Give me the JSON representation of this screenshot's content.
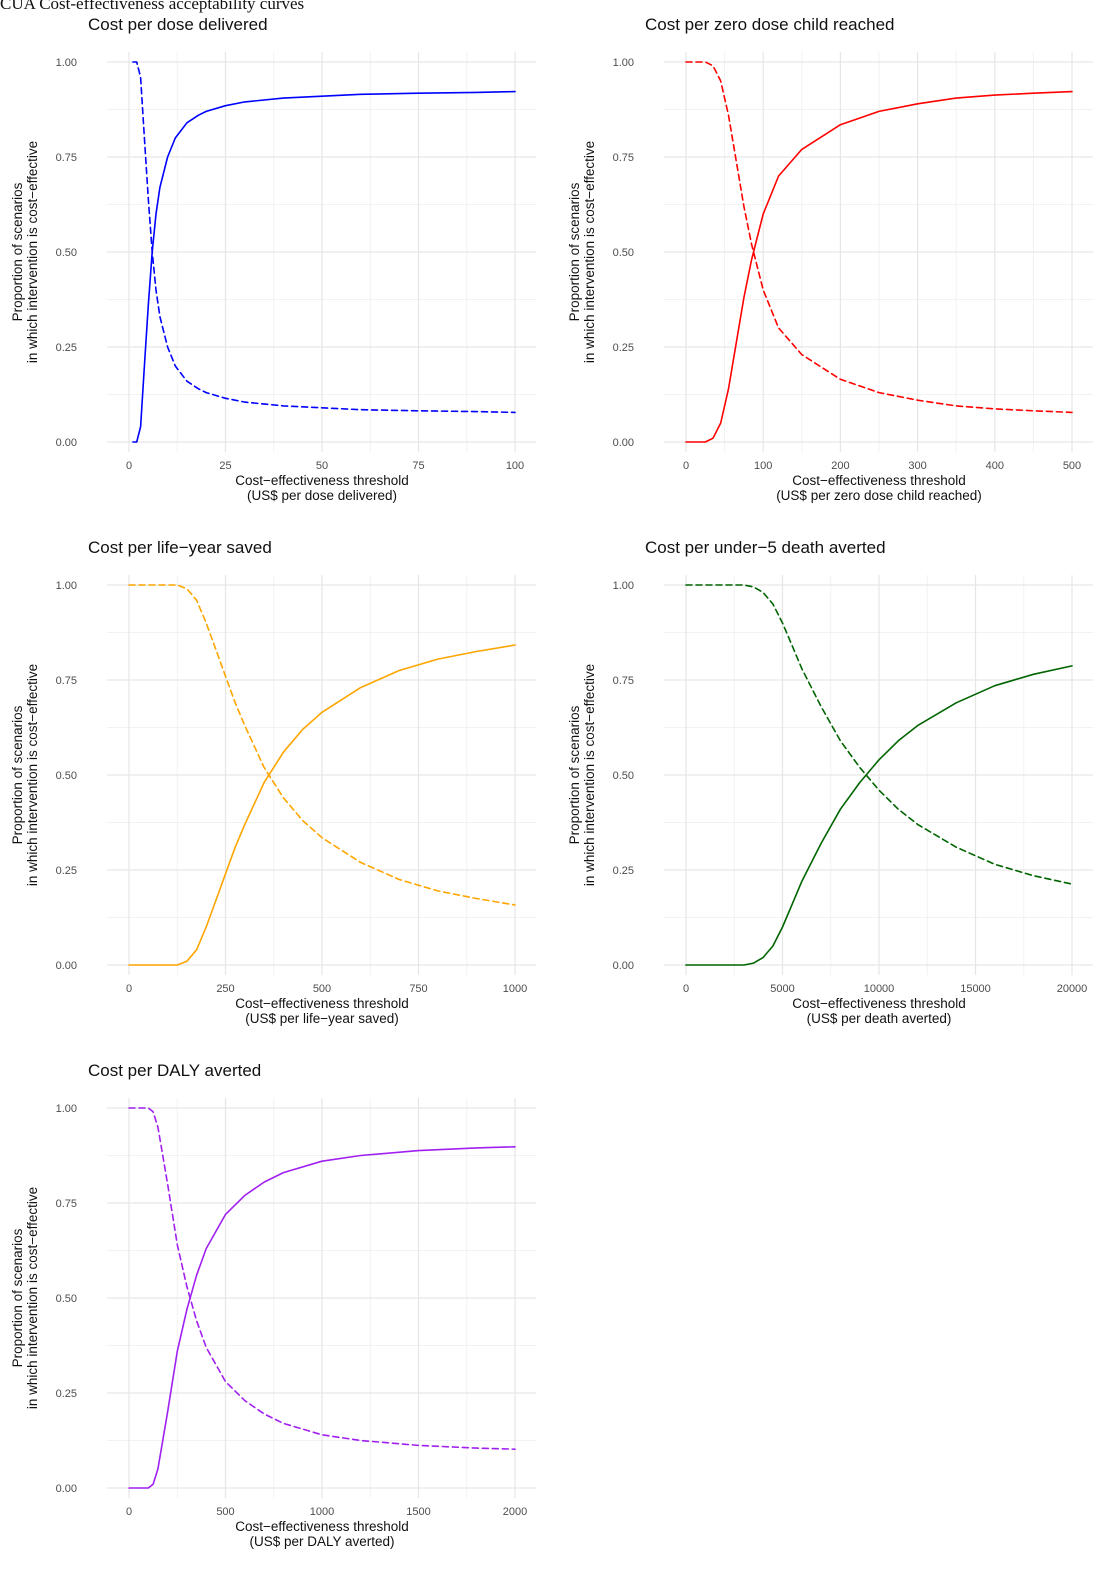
{
  "figure": {
    "heading": "CUA Cost-effectiveness acceptability curves"
  },
  "chart_data": [
    {
      "type": "line",
      "title": "Cost per dose delivered",
      "xlabel": [
        "Cost−effectiveness threshold",
        "(US$ per dose delivered)"
      ],
      "ylabel": [
        "Proportion of scenarios",
        "in which intervention is cost−effective"
      ],
      "xlim": [
        0,
        100
      ],
      "ylim": [
        0,
        1
      ],
      "x_ticks": [
        0,
        25,
        50,
        75,
        100
      ],
      "x_tick_labels": [
        "0",
        "25",
        "50",
        "75",
        "100"
      ],
      "y_ticks": [
        0,
        0.25,
        0.5,
        0.75,
        1
      ],
      "y_tick_labels": [
        "0.00",
        "0.25",
        "0.50",
        "0.75",
        "1.00"
      ],
      "grid": true,
      "legend": "none",
      "color": "#0000ff",
      "series": [
        {
          "style": "solid",
          "x": [
            1,
            2,
            3,
            4,
            5,
            6,
            7,
            8,
            10,
            12,
            15,
            18,
            20,
            25,
            30,
            40,
            50,
            60,
            75,
            90,
            100
          ],
          "y": [
            0,
            0,
            0.04,
            0.2,
            0.36,
            0.5,
            0.6,
            0.67,
            0.75,
            0.8,
            0.84,
            0.86,
            0.87,
            0.885,
            0.895,
            0.905,
            0.91,
            0.915,
            0.918,
            0.92,
            0.922
          ]
        },
        {
          "style": "dashed",
          "x": [
            1,
            2,
            3,
            4,
            5,
            6,
            7,
            8,
            10,
            12,
            15,
            18,
            20,
            25,
            30,
            40,
            50,
            60,
            75,
            90,
            100
          ],
          "y": [
            1,
            1,
            0.96,
            0.8,
            0.64,
            0.5,
            0.4,
            0.33,
            0.25,
            0.2,
            0.16,
            0.14,
            0.13,
            0.115,
            0.105,
            0.095,
            0.09,
            0.085,
            0.082,
            0.08,
            0.078
          ]
        }
      ]
    },
    {
      "type": "line",
      "title": "Cost per zero dose child reached",
      "xlabel": [
        "Cost−effectiveness threshold",
        "(US$ per zero dose child reached)"
      ],
      "ylabel": [
        "Proportion of scenarios",
        "in which intervention is cost−effective"
      ],
      "xlim": [
        0,
        500
      ],
      "ylim": [
        0,
        1
      ],
      "x_ticks": [
        0,
        100,
        200,
        300,
        400,
        500
      ],
      "x_tick_labels": [
        "0",
        "100",
        "200",
        "300",
        "400",
        "500"
      ],
      "y_ticks": [
        0,
        0.25,
        0.5,
        0.75,
        1
      ],
      "y_tick_labels": [
        "0.00",
        "0.25",
        "0.50",
        "0.75",
        "1.00"
      ],
      "grid": true,
      "legend": "none",
      "color": "#ff0000",
      "series": [
        {
          "style": "solid",
          "x": [
            0,
            25,
            35,
            45,
            55,
            65,
            75,
            85,
            100,
            120,
            150,
            200,
            250,
            300,
            350,
            400,
            450,
            500
          ],
          "y": [
            0,
            0,
            0.01,
            0.05,
            0.14,
            0.26,
            0.38,
            0.48,
            0.6,
            0.7,
            0.77,
            0.835,
            0.87,
            0.89,
            0.905,
            0.913,
            0.918,
            0.922
          ]
        },
        {
          "style": "dashed",
          "x": [
            0,
            25,
            35,
            45,
            55,
            65,
            75,
            85,
            100,
            120,
            150,
            200,
            250,
            300,
            350,
            400,
            450,
            500
          ],
          "y": [
            1,
            1,
            0.99,
            0.95,
            0.86,
            0.74,
            0.62,
            0.52,
            0.4,
            0.3,
            0.23,
            0.165,
            0.13,
            0.11,
            0.095,
            0.087,
            0.082,
            0.078
          ]
        }
      ]
    },
    {
      "type": "line",
      "title": "Cost per life−year saved",
      "xlabel": [
        "Cost−effectiveness threshold",
        "(US$ per life−year saved)"
      ],
      "ylabel": [
        "Proportion of scenarios",
        "in which intervention is cost−effective"
      ],
      "xlim": [
        0,
        1000
      ],
      "ylim": [
        0,
        1
      ],
      "x_ticks": [
        0,
        250,
        500,
        750,
        1000
      ],
      "x_tick_labels": [
        "0",
        "250",
        "500",
        "750",
        "1000"
      ],
      "y_ticks": [
        0,
        0.25,
        0.5,
        0.75,
        1
      ],
      "y_tick_labels": [
        "0.00",
        "0.25",
        "0.50",
        "0.75",
        "1.00"
      ],
      "grid": true,
      "legend": "none",
      "color": "#ffa500",
      "series": [
        {
          "style": "solid",
          "x": [
            0,
            100,
            125,
            150,
            175,
            200,
            225,
            250,
            275,
            300,
            350,
            400,
            450,
            500,
            600,
            700,
            800,
            900,
            1000
          ],
          "y": [
            0,
            0,
            0,
            0.01,
            0.04,
            0.1,
            0.17,
            0.24,
            0.31,
            0.37,
            0.48,
            0.56,
            0.62,
            0.665,
            0.73,
            0.775,
            0.805,
            0.825,
            0.842
          ]
        },
        {
          "style": "dashed",
          "x": [
            0,
            100,
            125,
            150,
            175,
            200,
            225,
            250,
            275,
            300,
            350,
            400,
            450,
            500,
            600,
            700,
            800,
            900,
            1000
          ],
          "y": [
            1,
            1,
            1,
            0.99,
            0.96,
            0.9,
            0.83,
            0.76,
            0.69,
            0.63,
            0.52,
            0.44,
            0.38,
            0.335,
            0.27,
            0.225,
            0.195,
            0.175,
            0.158
          ]
        }
      ]
    },
    {
      "type": "line",
      "title": "Cost per under−5 death averted",
      "xlabel": [
        "Cost−effectiveness threshold",
        "(US$ per death averted)"
      ],
      "ylabel": [
        "Proportion of scenarios",
        "in which intervention is cost−effective"
      ],
      "xlim": [
        0,
        20000
      ],
      "ylim": [
        0,
        1
      ],
      "x_ticks": [
        0,
        5000,
        10000,
        15000,
        20000
      ],
      "x_tick_labels": [
        "0",
        "5000",
        "10000",
        "15000",
        "20000"
      ],
      "y_ticks": [
        0,
        0.25,
        0.5,
        0.75,
        1
      ],
      "y_tick_labels": [
        "0.00",
        "0.25",
        "0.50",
        "0.75",
        "1.00"
      ],
      "grid": true,
      "legend": "none",
      "color": "#006400",
      "series": [
        {
          "style": "solid",
          "x": [
            0,
            3000,
            3500,
            4000,
            4500,
            5000,
            5500,
            6000,
            7000,
            8000,
            9000,
            10000,
            11000,
            12000,
            14000,
            16000,
            18000,
            20000
          ],
          "y": [
            0,
            0,
            0.005,
            0.02,
            0.05,
            0.1,
            0.16,
            0.22,
            0.32,
            0.41,
            0.48,
            0.54,
            0.59,
            0.63,
            0.69,
            0.735,
            0.765,
            0.787
          ]
        },
        {
          "style": "dashed",
          "x": [
            0,
            3000,
            3500,
            4000,
            4500,
            5000,
            5500,
            6000,
            7000,
            8000,
            9000,
            10000,
            11000,
            12000,
            14000,
            16000,
            18000,
            20000
          ],
          "y": [
            1,
            1,
            0.995,
            0.98,
            0.95,
            0.9,
            0.84,
            0.78,
            0.68,
            0.59,
            0.52,
            0.46,
            0.41,
            0.37,
            0.31,
            0.265,
            0.235,
            0.213
          ]
        }
      ]
    },
    {
      "type": "line",
      "title": "Cost per DALY averted",
      "xlabel": [
        "Cost−effectiveness threshold",
        "(US$ per DALY averted)"
      ],
      "ylabel": [
        "Proportion of scenarios",
        "in which intervention is cost−effective"
      ],
      "xlim": [
        0,
        2000
      ],
      "ylim": [
        0,
        1
      ],
      "x_ticks": [
        0,
        500,
        1000,
        1500,
        2000
      ],
      "x_tick_labels": [
        "0",
        "500",
        "1000",
        "1500",
        "2000"
      ],
      "y_ticks": [
        0,
        0.25,
        0.5,
        0.75,
        1
      ],
      "y_tick_labels": [
        "0.00",
        "0.25",
        "0.50",
        "0.75",
        "1.00"
      ],
      "grid": true,
      "legend": "none",
      "color": "#a020f0",
      "series": [
        {
          "style": "solid",
          "x": [
            0,
            100,
            125,
            150,
            200,
            250,
            300,
            350,
            400,
            500,
            600,
            700,
            800,
            1000,
            1200,
            1500,
            1800,
            2000
          ],
          "y": [
            0,
            0,
            0.01,
            0.05,
            0.2,
            0.36,
            0.47,
            0.56,
            0.63,
            0.72,
            0.77,
            0.805,
            0.83,
            0.86,
            0.875,
            0.888,
            0.895,
            0.898
          ]
        },
        {
          "style": "dashed",
          "x": [
            0,
            100,
            125,
            150,
            200,
            250,
            300,
            350,
            400,
            500,
            600,
            700,
            800,
            1000,
            1200,
            1500,
            1800,
            2000
          ],
          "y": [
            1,
            1,
            0.99,
            0.95,
            0.8,
            0.64,
            0.53,
            0.44,
            0.37,
            0.28,
            0.23,
            0.195,
            0.17,
            0.14,
            0.125,
            0.112,
            0.105,
            0.102
          ]
        }
      ]
    }
  ]
}
